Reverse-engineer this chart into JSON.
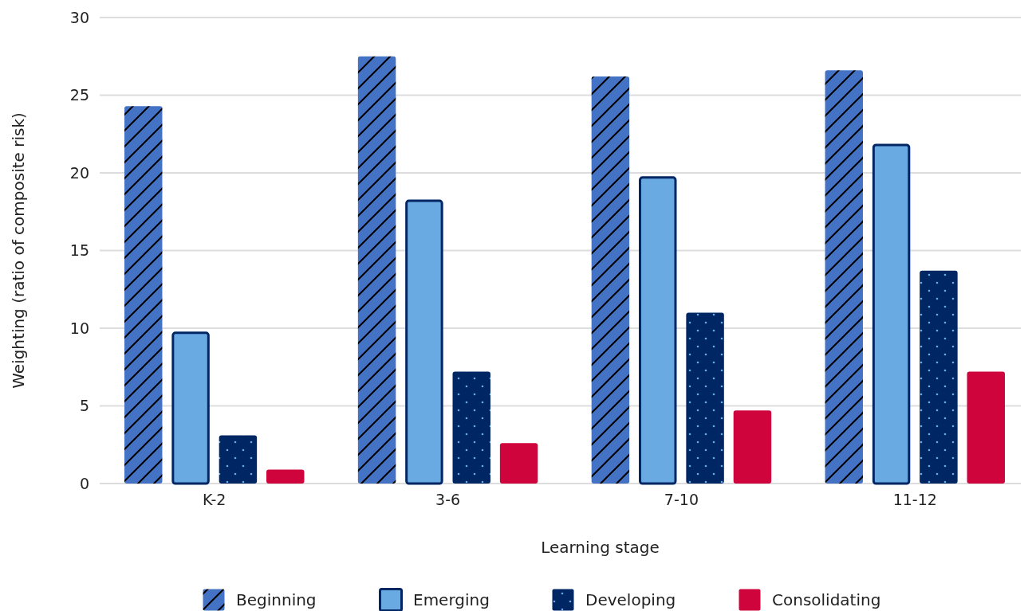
{
  "chart_data": {
    "type": "bar",
    "xlabel": "Learning stage",
    "ylabel": "Weighting (ratio of composite risk)",
    "categories": [
      "K-2",
      "3-6",
      "7-10",
      "11-12"
    ],
    "series": [
      {
        "name": "Beginning",
        "color": "#4472c4",
        "values": [
          24.3,
          27.5,
          26.2,
          26.6
        ]
      },
      {
        "name": "Emerging",
        "color": "#6aaae2",
        "values": [
          9.7,
          18.2,
          19.7,
          21.8
        ]
      },
      {
        "name": "Developing",
        "color": "#002664",
        "values": [
          3.1,
          7.2,
          11.0,
          13.7
        ]
      },
      {
        "name": "Consolidating",
        "color": "#d0043c",
        "values": [
          0.9,
          2.6,
          4.7,
          7.2
        ]
      }
    ],
    "ylim": [
      0,
      30
    ],
    "yticks": [
      0,
      5,
      10,
      15,
      20,
      25,
      30
    ],
    "grid": "y",
    "legend": "bottom"
  }
}
